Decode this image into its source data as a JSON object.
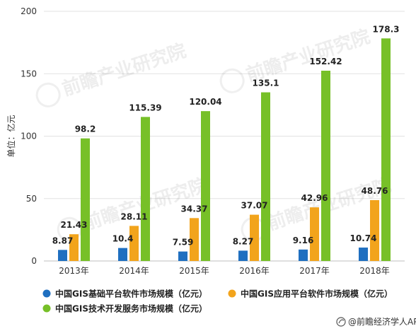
{
  "chart_data": {
    "type": "bar",
    "categories": [
      "2013年",
      "2014年",
      "2015年",
      "2016年",
      "2017年",
      "2018年"
    ],
    "series": [
      {
        "name": "中国GIS基础平台软件市场规模（亿元）",
        "color": "#1f6fc0",
        "values": [
          8.87,
          10.4,
          7.59,
          8.27,
          9.16,
          10.74
        ]
      },
      {
        "name": "中国GIS应用平台软件市场规模（亿元）",
        "color": "#f2a41c",
        "values": [
          21.43,
          28.11,
          34.37,
          37.07,
          42.96,
          48.76
        ]
      },
      {
        "name": "中国GIS技术开发服务市场规模（亿元）",
        "color": "#77c028",
        "values": [
          98.2,
          115.39,
          120.04,
          135.1,
          152.42,
          178.3
        ]
      }
    ],
    "ylabel": "单位：亿元",
    "ylim": [
      0,
      200
    ],
    "yticks": [
      0,
      50,
      100,
      150,
      200
    ],
    "grid": true,
    "legend_position": "bottom"
  },
  "footer": {
    "source": "@前瞻经济学人APP"
  },
  "watermark": {
    "text": "前瞻产业研究院"
  }
}
